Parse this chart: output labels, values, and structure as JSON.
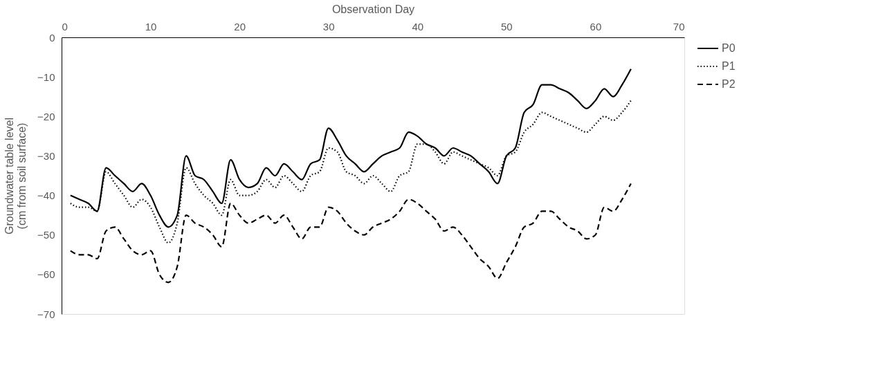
{
  "chart_data": {
    "type": "line",
    "xlabel": "Observation Day",
    "ylabel": "Groundwater table level (cm from soil surface)",
    "x": [
      1,
      2,
      3,
      4,
      5,
      6,
      7,
      8,
      9,
      10,
      11,
      12,
      13,
      14,
      15,
      16,
      17,
      18,
      19,
      20,
      21,
      22,
      23,
      24,
      25,
      26,
      27,
      28,
      29,
      30,
      31,
      32,
      33,
      34,
      35,
      36,
      37,
      38,
      39,
      40,
      41,
      42,
      43,
      44,
      45,
      46,
      47,
      48,
      49,
      50,
      51,
      52,
      53,
      54,
      55,
      56,
      57,
      58,
      59,
      60,
      61,
      62,
      63,
      64
    ],
    "xlim": [
      0,
      70
    ],
    "xticks": [
      0,
      10,
      20,
      30,
      40,
      50,
      60,
      70
    ],
    "ylim": [
      -70,
      0
    ],
    "yticks": [
      -70,
      -60,
      -50,
      -40,
      -30,
      -20,
      -10,
      0
    ],
    "grid": false,
    "legend": "right",
    "marker": "none",
    "series": [
      {
        "name": "P0",
        "color": "#000000",
        "line_style": "solid",
        "values": [
          -40,
          -41,
          -42,
          -44,
          -33,
          -35,
          -37,
          -39,
          -37,
          -40,
          -45,
          -48,
          -45,
          -30,
          -35,
          -36,
          -39,
          -42,
          -31,
          -36,
          -38,
          -37,
          -33,
          -35,
          -32,
          -34,
          -36,
          -32,
          -31,
          -23,
          -26,
          -30,
          -32,
          -34,
          -32,
          -30,
          -29,
          -28,
          -24,
          -25,
          -27,
          -28,
          -30,
          -28,
          -29,
          -30,
          -32,
          -34,
          -37,
          -30,
          -28,
          -19,
          -17,
          -12,
          -12,
          -13,
          -14,
          -16,
          -18,
          -16,
          -13,
          -15,
          -12,
          -8
        ]
      },
      {
        "name": "P1",
        "color": "#000000",
        "line_style": "dotted",
        "values": [
          -42,
          -43,
          -43,
          -44,
          -34,
          -37,
          -40,
          -43,
          -41,
          -43,
          -48,
          -52,
          -47,
          -33,
          -37,
          -40,
          -42,
          -45,
          -36,
          -40,
          -40,
          -39,
          -36,
          -38,
          -35,
          -37,
          -39,
          -35,
          -34,
          -28,
          -29,
          -34,
          -35,
          -37,
          -35,
          -37,
          -39,
          -35,
          -34,
          -27,
          -27,
          -29,
          -32,
          -29,
          -30,
          -31,
          -32,
          -33,
          -35,
          -30,
          -29,
          -24,
          -22,
          -19,
          -20,
          -21,
          -22,
          -23,
          -24,
          -22,
          -20,
          -21,
          -19,
          -16
        ]
      },
      {
        "name": "P2",
        "color": "#000000",
        "line_style": "dashed",
        "values": [
          -54,
          -55,
          -55,
          -56,
          -49,
          -48,
          -51,
          -54,
          -55,
          -54,
          -60,
          -62,
          -58,
          -45,
          -47,
          -48,
          -50,
          -53,
          -42,
          -45,
          -47,
          -46,
          -45,
          -47,
          -45,
          -48,
          -51,
          -48,
          -48,
          -43,
          -44,
          -47,
          -49,
          -50,
          -48,
          -47,
          -46,
          -44,
          -41,
          -42,
          -44,
          -46,
          -49,
          -48,
          -50,
          -53,
          -56,
          -58,
          -61,
          -57,
          -53,
          -48,
          -47,
          -44,
          -44,
          -46,
          -48,
          -49,
          -51,
          -50,
          -43,
          -44,
          -41,
          -37
        ]
      }
    ]
  }
}
